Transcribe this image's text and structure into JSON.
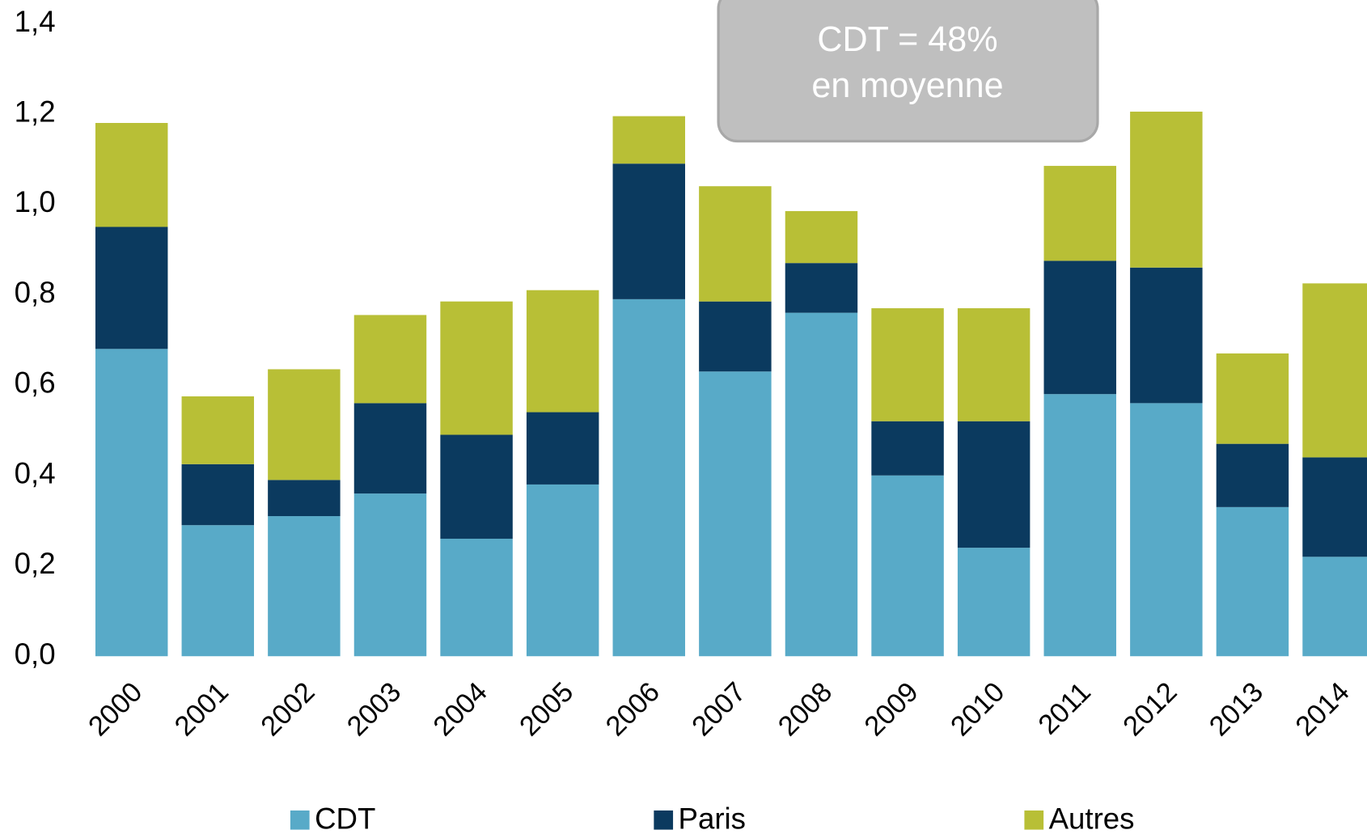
{
  "chart_data": {
    "type": "stacked_bar",
    "categories": [
      "2000",
      "2001",
      "2002",
      "2003",
      "2004",
      "2005",
      "2006",
      "2007",
      "2008",
      "2009",
      "2010",
      "2011",
      "2012",
      "2013",
      "2014"
    ],
    "series": [
      {
        "name": "CDT",
        "color": "#58aac8",
        "values": [
          0.68,
          0.29,
          0.31,
          0.36,
          0.26,
          0.38,
          0.79,
          0.63,
          0.76,
          0.4,
          0.24,
          0.58,
          0.56,
          0.33,
          0.22
        ]
      },
      {
        "name": "Paris",
        "color": "#0b3a5f",
        "values": [
          0.27,
          0.135,
          0.08,
          0.2,
          0.23,
          0.16,
          0.3,
          0.155,
          0.11,
          0.12,
          0.28,
          0.295,
          0.3,
          0.14,
          0.22
        ]
      },
      {
        "name": "Autres",
        "color": "#b8bf36",
        "values": [
          0.23,
          0.15,
          0.245,
          0.195,
          0.295,
          0.27,
          0.105,
          0.255,
          0.115,
          0.25,
          0.25,
          0.21,
          0.345,
          0.2,
          0.385
        ]
      }
    ],
    "ylim": [
      0,
      1.4
    ],
    "yticks": [
      {
        "value": 0,
        "label": "0,0"
      },
      {
        "value": 0.2,
        "label": "0,2"
      },
      {
        "value": 0.4,
        "label": "0,4"
      },
      {
        "value": 0.6,
        "label": "0,6"
      },
      {
        "value": 0.8,
        "label": "0,8"
      },
      {
        "value": 1.0,
        "label": "1,0"
      },
      {
        "value": 1.2,
        "label": "1,2"
      },
      {
        "value": 1.4,
        "label": "1,4"
      }
    ],
    "annotation": [
      "CDT = 48%",
      "en moyenne"
    ]
  }
}
